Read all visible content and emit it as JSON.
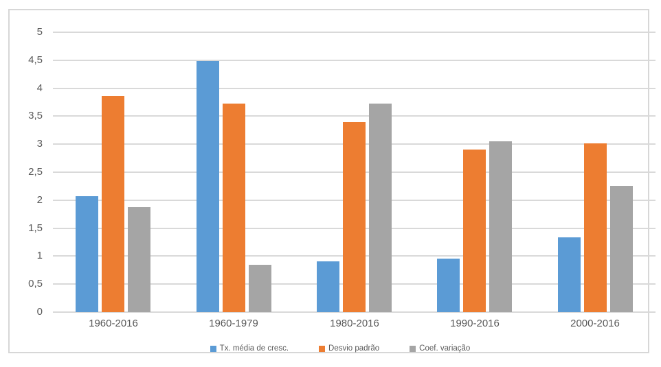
{
  "chart_data": {
    "type": "bar",
    "title": "",
    "xlabel": "",
    "ylabel": "",
    "categories": [
      "1960-2016",
      "1960-1979",
      "1980-2016",
      "1990-2016",
      "2000-2016"
    ],
    "series": [
      {
        "name": "Tx. média de cresc.",
        "color": "#5B9BD5",
        "values": [
          2.07,
          4.48,
          0.91,
          0.96,
          1.34
        ]
      },
      {
        "name": "Desvio padrão",
        "color": "#ED7D31",
        "values": [
          3.86,
          3.73,
          3.39,
          2.9,
          3.02
        ]
      },
      {
        "name": "Coef. variação",
        "color": "#A5A5A5",
        "values": [
          1.87,
          0.84,
          3.72,
          3.05,
          2.26
        ]
      }
    ],
    "ylim": [
      0,
      5
    ],
    "ytick_step": 0.5,
    "ytick_labels": [
      "0",
      "0,5",
      "1",
      "1,5",
      "2",
      "2,5",
      "3",
      "3,5",
      "4",
      "4,5",
      "5"
    ],
    "grid": true,
    "legend_position": "bottom",
    "decimal_separator": ","
  },
  "colors": {
    "background": "#FFFFFF",
    "frame_border": "#D7D7D7",
    "gridline": "#D9D9D9",
    "axis_text": "#595959"
  }
}
